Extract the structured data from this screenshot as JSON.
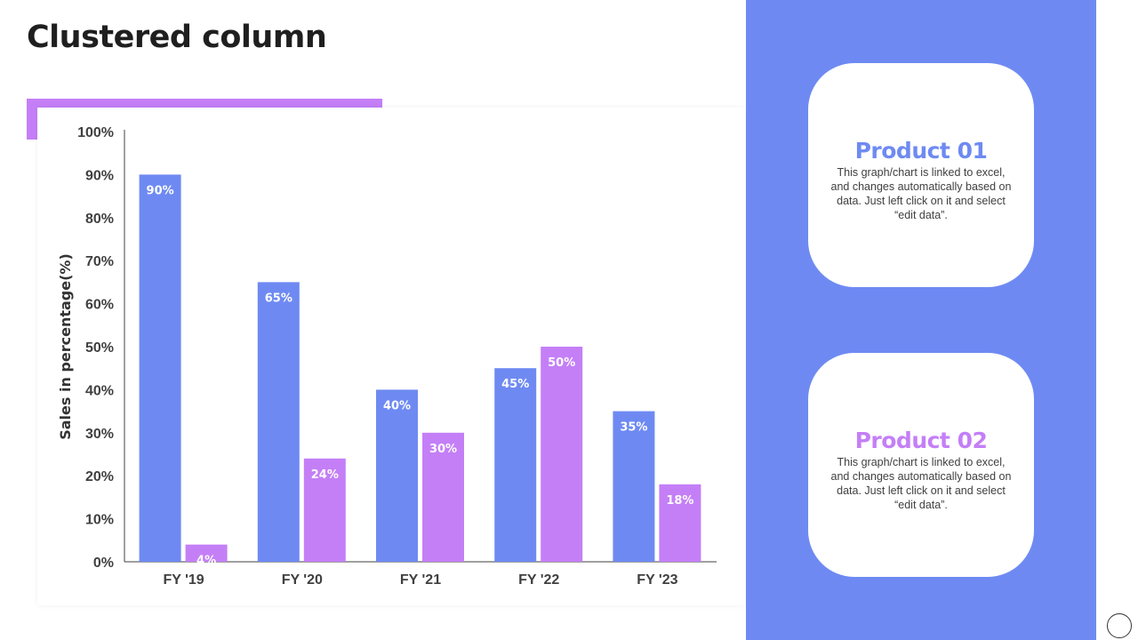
{
  "page": {
    "title": "Clustered column"
  },
  "colors": {
    "product1": "#6e8af2",
    "product2": "#c47ff7",
    "panel": "#6e8af2",
    "accent": "#c47ff7"
  },
  "chart_data": {
    "type": "bar",
    "categories": [
      "FY '19",
      "FY '20",
      "FY '21",
      "FY '22",
      "FY '23"
    ],
    "series": [
      {
        "values": [
          90,
          65,
          40,
          45,
          35
        ],
        "labels": [
          "90%",
          "65%",
          "40%",
          "45%",
          "35%"
        ],
        "color": "#6e8af2"
      },
      {
        "values": [
          4,
          24,
          30,
          50,
          18
        ],
        "labels": [
          "4%",
          "24%",
          "30%",
          "50%",
          "18%"
        ],
        "color": "#c47ff7"
      }
    ],
    "ylabel": "Sales in percentage(%)",
    "ylim": [
      0,
      100
    ],
    "yticks": [
      "0%",
      "10%",
      "20%",
      "30%",
      "40%",
      "50%",
      "60%",
      "70%",
      "80%",
      "90%",
      "100%"
    ],
    "grid": false
  },
  "products": [
    {
      "title": "Product 01",
      "description": "This graph/chart is linked to excel, and changes automatically based on data. Just left click on it and select “edit data”.",
      "color": "#6e8af2"
    },
    {
      "title": "Product 02",
      "description": "This graph/chart is linked to excel, and changes automatically based on data. Just left click on it and select “edit data”.",
      "color": "#c47ff7"
    }
  ]
}
